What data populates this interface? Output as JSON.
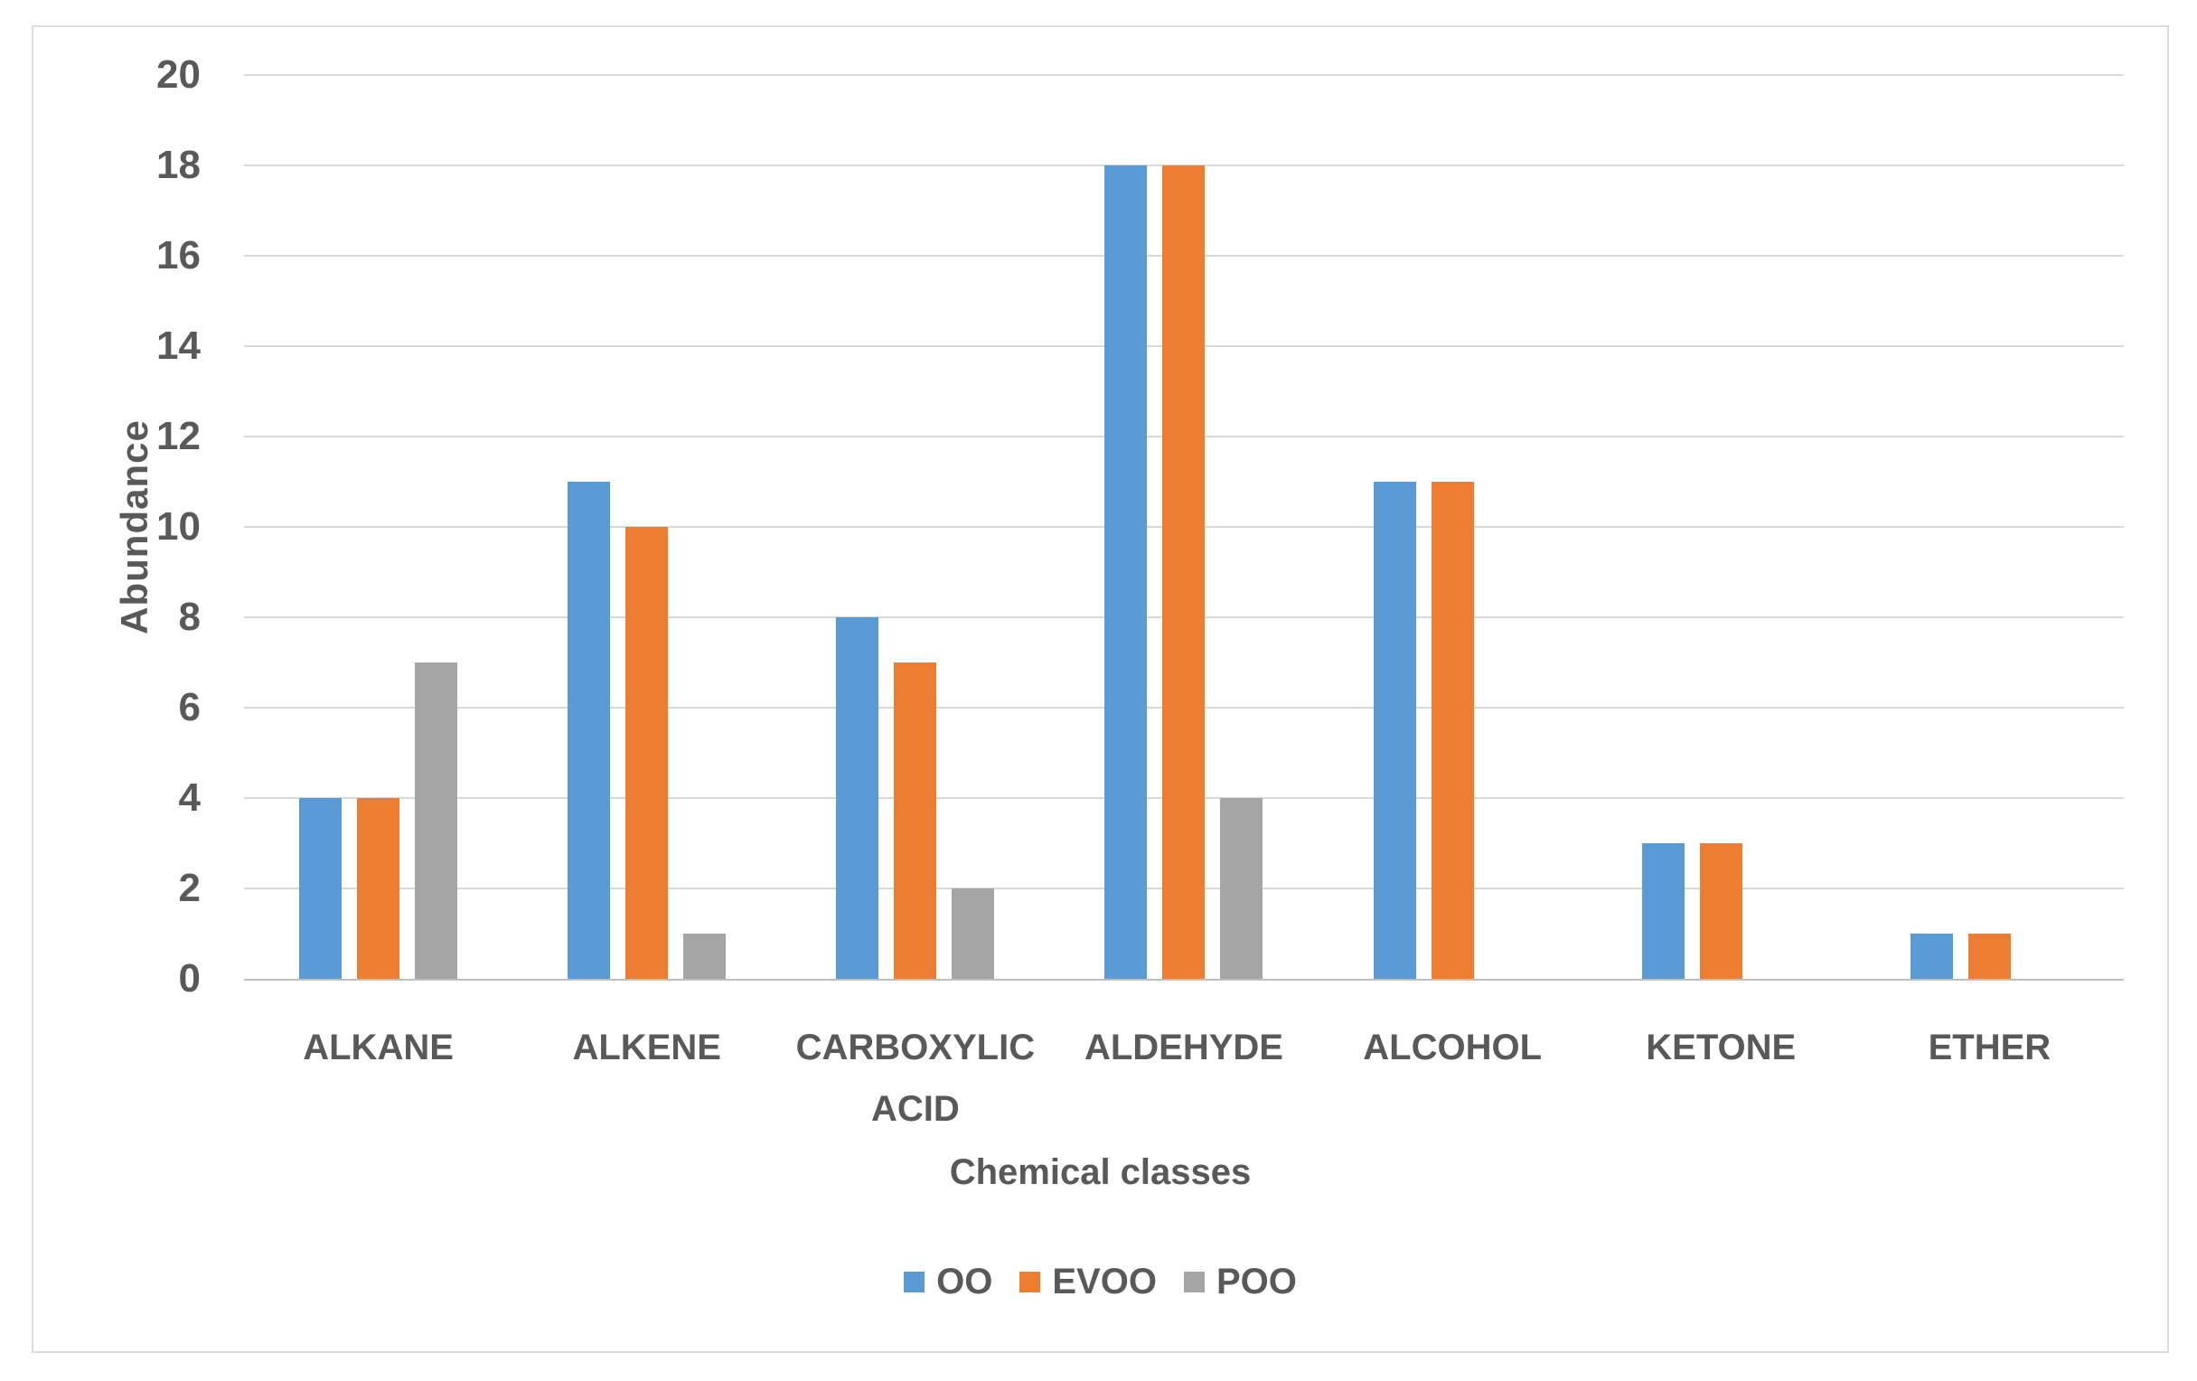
{
  "colors": {
    "background": "#FFFFFF",
    "text": "#595959",
    "gridline": "#D9D9D9",
    "axis_line": "#BFBFBF",
    "chart_border": "#DCDCDC",
    "series_oo": "#5B9BD5",
    "series_evoo": "#ED7D31",
    "series_poo": "#A5A5A5"
  },
  "chart_data": {
    "type": "bar",
    "title": "",
    "xlabel": "Chemical classes",
    "ylabel": "Abundance",
    "categories": [
      "ALKANE",
      "ALKENE",
      "CARBOXYLIC ACID",
      "ALDEHYDE",
      "ALCOHOL",
      "KETONE",
      "ETHER"
    ],
    "series": [
      {
        "name": "OO",
        "color": "#5B9BD5",
        "values": [
          4,
          11,
          8,
          18,
          11,
          3,
          1
        ]
      },
      {
        "name": "EVOO",
        "color": "#ED7D31",
        "values": [
          4,
          10,
          7,
          18,
          11,
          3,
          1
        ]
      },
      {
        "name": "POO",
        "color": "#A5A5A5",
        "values": [
          7,
          1,
          2,
          4,
          0,
          0,
          0
        ]
      }
    ],
    "ylim": [
      0,
      20
    ],
    "ytick_step": 2,
    "ytick_labels": [
      "0",
      "2",
      "4",
      "6",
      "8",
      "10",
      "12",
      "14",
      "16",
      "18",
      "20"
    ],
    "grid": true,
    "legend_position": "bottom",
    "legend_entries": [
      "OO",
      "EVOO",
      "POO"
    ]
  }
}
